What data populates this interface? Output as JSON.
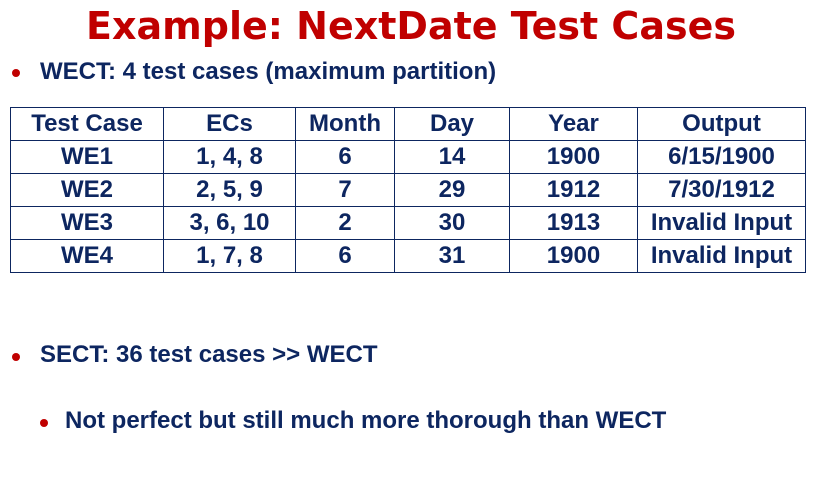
{
  "title": "Example: NextDate Test Cases",
  "bullets": {
    "wect": "WECT: 4 test cases (maximum partition)",
    "sect": "SECT: 36 test cases >> WECT",
    "sub": "Not perfect but still much more thorough than WECT"
  },
  "table": {
    "headers": [
      "Test Case",
      "ECs",
      "Month",
      "Day",
      "Year",
      "Output"
    ],
    "rows": [
      [
        "WE1",
        "1, 4, 8",
        "6",
        "14",
        "1900",
        "6/15/1900"
      ],
      [
        "WE2",
        "2, 5, 9",
        "7",
        "29",
        "1912",
        "7/30/1912"
      ],
      [
        "WE3",
        "3, 6, 10",
        "2",
        "30",
        "1913",
        "Invalid Input"
      ],
      [
        "WE4",
        "1, 7, 8",
        "6",
        "31",
        "1900",
        "Invalid Input"
      ]
    ]
  },
  "colors": {
    "title": "#c00000",
    "text": "#0d2660",
    "bullet_dot": "#c00000"
  }
}
